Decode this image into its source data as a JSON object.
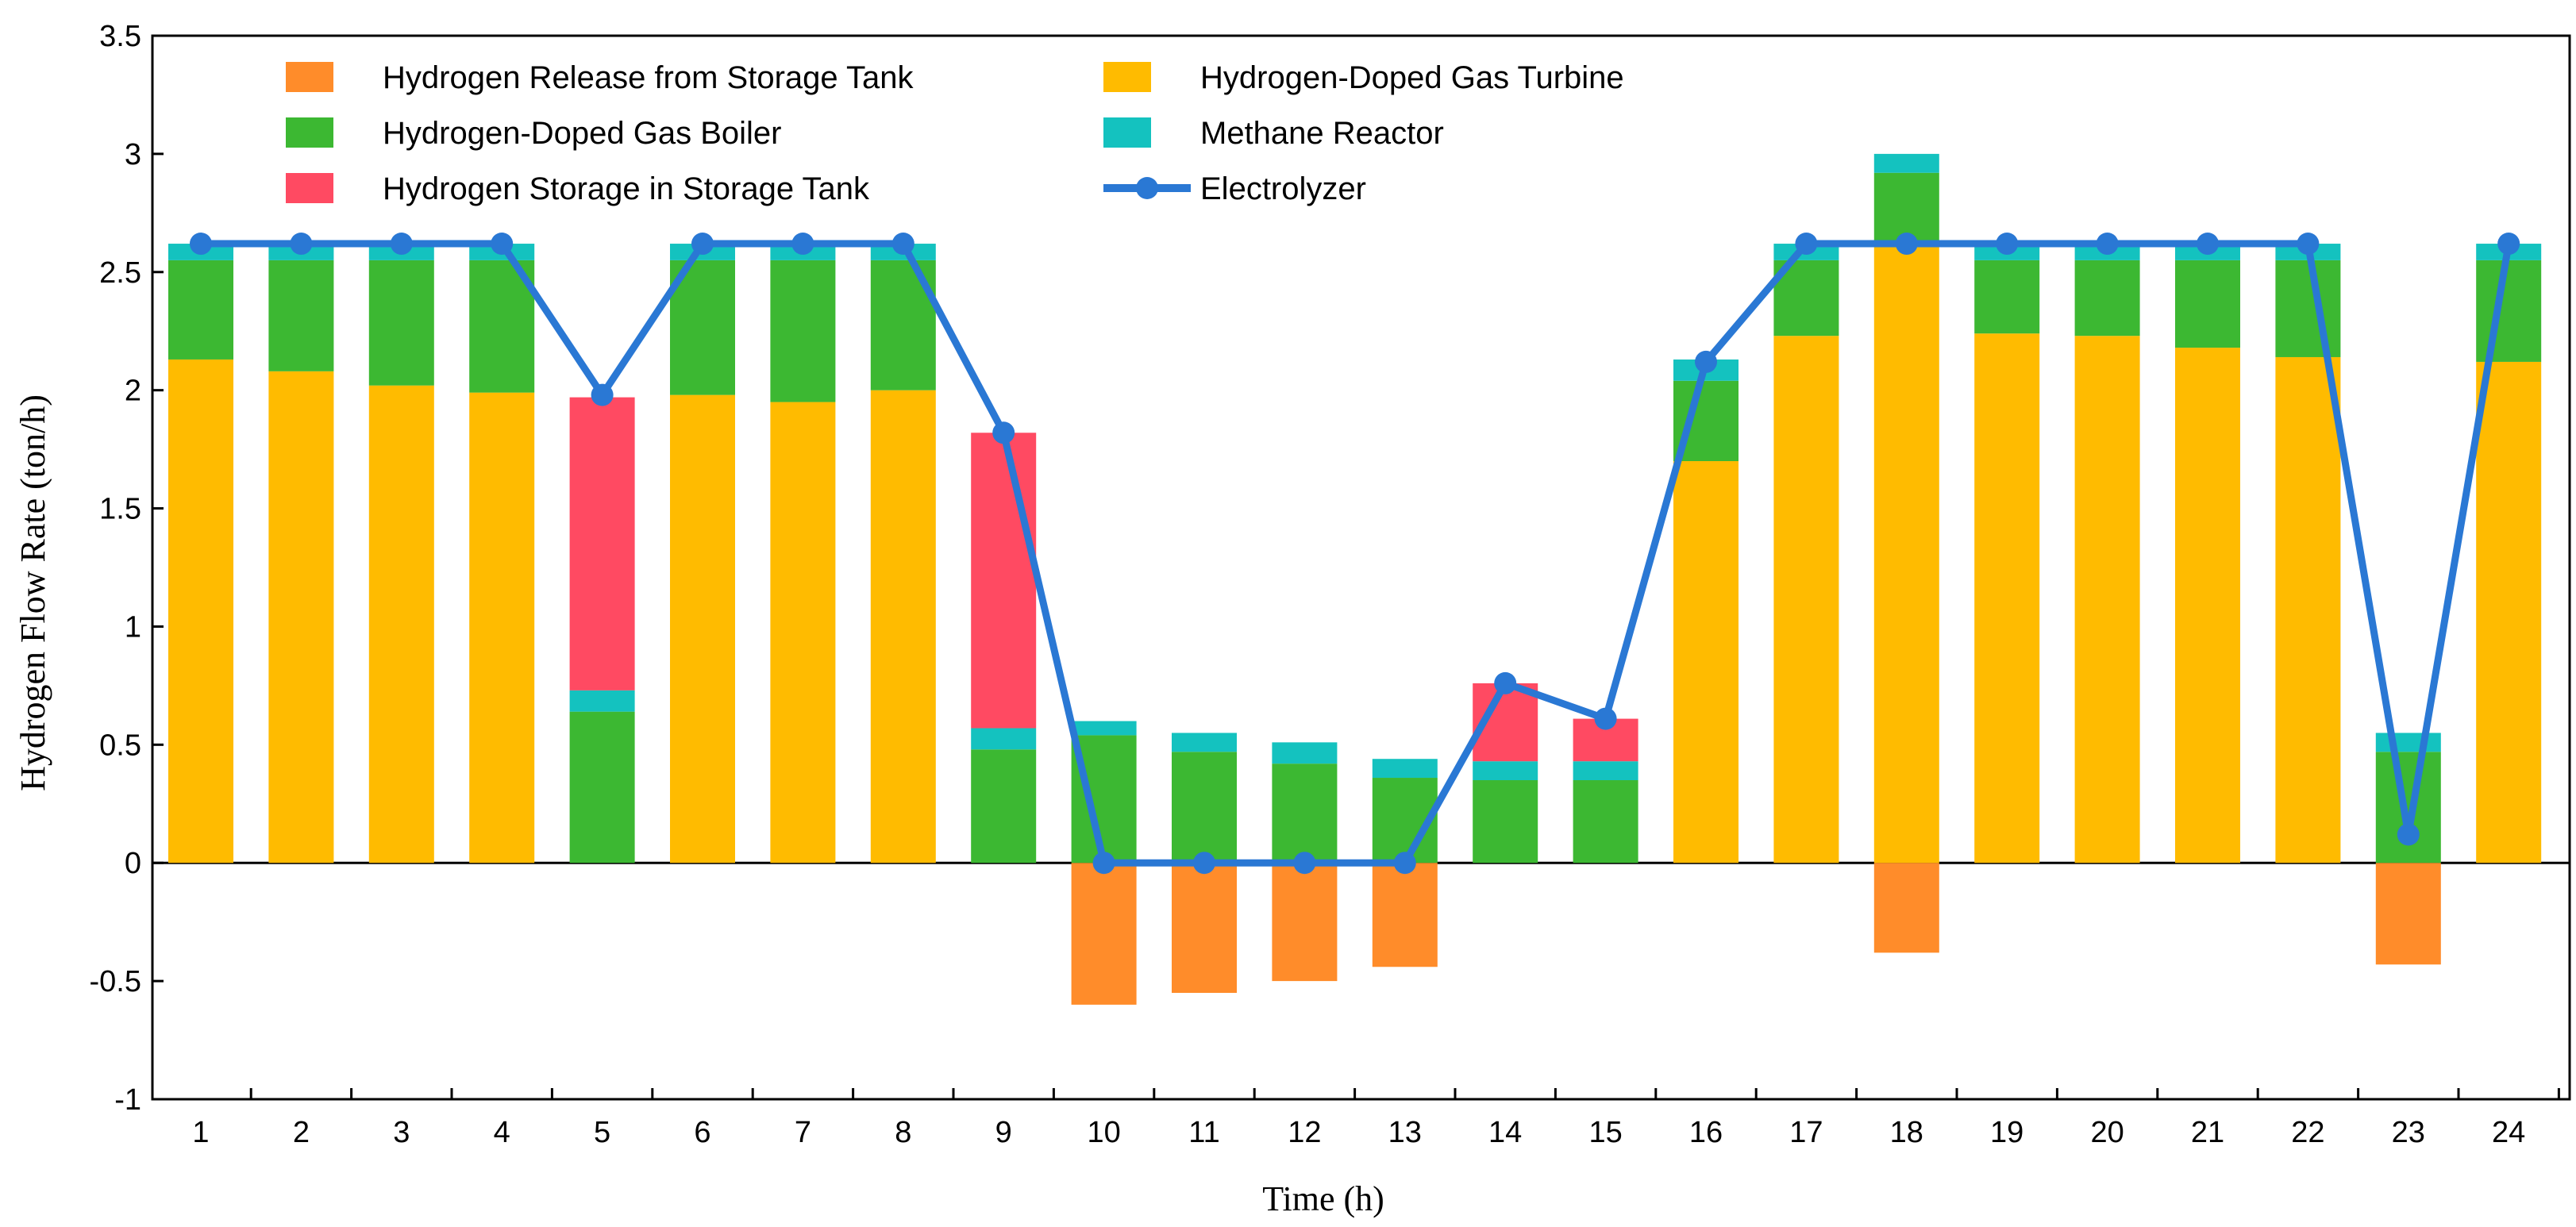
{
  "chart_data": {
    "type": "bar",
    "stacked": true,
    "title": "",
    "xlabel": "Time (h)",
    "ylabel": "Hydrogen Flow Rate (ton/h)",
    "ylim": [
      -1,
      3.5
    ],
    "yticks": [
      -1,
      -0.5,
      0,
      0.5,
      1,
      1.5,
      2,
      2.5,
      3,
      3.5
    ],
    "ytick_labels": [
      "-1",
      "-0.5",
      "0",
      "0.5",
      "1",
      "1.5",
      "2",
      "2.5",
      "3",
      "3.5"
    ],
    "categories": [
      "1",
      "2",
      "3",
      "4",
      "5",
      "6",
      "7",
      "8",
      "9",
      "10",
      "11",
      "12",
      "13",
      "14",
      "15",
      "16",
      "17",
      "18",
      "19",
      "20",
      "21",
      "22",
      "23",
      "24"
    ],
    "legend_position": "top-left",
    "series": [
      {
        "name": "Hydrogen Release from Storage Tank",
        "type": "bar",
        "color": "#FF8C2A",
        "values": [
          0,
          0,
          0,
          0,
          0,
          0,
          0,
          0,
          0,
          -0.6,
          -0.55,
          -0.5,
          -0.44,
          0,
          0,
          0,
          0,
          -0.38,
          0,
          0,
          0,
          0,
          -0.43,
          0
        ]
      },
      {
        "name": "Hydrogen-Doped Gas Turbine",
        "type": "bar",
        "color": "#FFBB00",
        "values": [
          2.13,
          2.08,
          2.02,
          1.99,
          0,
          1.98,
          1.95,
          2.0,
          0,
          0,
          0,
          0,
          0,
          0,
          0,
          1.7,
          2.23,
          2.62,
          2.24,
          2.23,
          2.18,
          2.14,
          0,
          2.12
        ]
      },
      {
        "name": "Hydrogen-Doped Gas Boiler",
        "type": "bar",
        "color": "#3CB832",
        "values": [
          0.42,
          0.47,
          0.53,
          0.56,
          0.64,
          0.57,
          0.6,
          0.55,
          0.48,
          0.54,
          0.47,
          0.42,
          0.36,
          0.35,
          0.35,
          0.34,
          0.32,
          0.3,
          0.31,
          0.32,
          0.37,
          0.41,
          0.47,
          0.43
        ]
      },
      {
        "name": "Methane Reactor",
        "type": "bar",
        "color": "#14C2BF",
        "values": [
          0.07,
          0.07,
          0.07,
          0.07,
          0.09,
          0.07,
          0.07,
          0.07,
          0.09,
          0.06,
          0.08,
          0.09,
          0.08,
          0.08,
          0.08,
          0.09,
          0.07,
          0.08,
          0.07,
          0.07,
          0.07,
          0.07,
          0.08,
          0.07
        ]
      },
      {
        "name": "Hydrogen Storage in Storage Tank",
        "type": "bar",
        "color": "#FF4A62",
        "values": [
          0,
          0,
          0,
          0,
          1.24,
          0,
          0,
          0,
          1.25,
          0,
          0,
          0,
          0,
          0.33,
          0.18,
          0,
          0,
          0,
          0,
          0,
          0,
          0,
          0,
          0
        ]
      },
      {
        "name": "Electrolyzer",
        "type": "line",
        "color": "#2A78D4",
        "values": [
          2.62,
          2.62,
          2.62,
          2.62,
          1.98,
          2.62,
          2.62,
          2.62,
          1.82,
          0,
          0,
          0,
          0,
          0.76,
          0.61,
          2.12,
          2.62,
          2.62,
          2.62,
          2.62,
          2.62,
          2.62,
          0.12,
          2.62
        ]
      }
    ]
  }
}
